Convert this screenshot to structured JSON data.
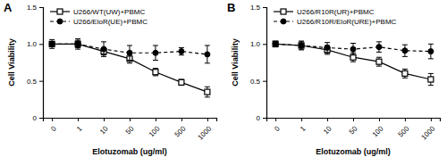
{
  "chart_data": [
    {
      "type": "line",
      "title": "A",
      "x_label": "Elotuzomab (ug/ml)",
      "y_label": "Cell Viability",
      "categories": [
        "0",
        "1",
        "10",
        "50",
        "100",
        "500",
        "1000"
      ],
      "ylim": [
        0,
        1.5
      ],
      "yticks": [
        0,
        0.5,
        {
          "value": 1,
          "label": "1.0"
        },
        1.5
      ],
      "legend": "top-left",
      "series": [
        {
          "name": "U266/WT(UW)+PBMC",
          "color": "#000000",
          "marker": "square",
          "line_style": "solid",
          "values": [
            1.0,
            1.0,
            0.9,
            0.8,
            0.62,
            0.48,
            0.35
          ],
          "errors": [
            0.03,
            0.05,
            0.05,
            0.06,
            0.05,
            0.04,
            0.07
          ]
        },
        {
          "name": "U266/EloR(UE)+PBMC",
          "color": "#000000",
          "marker": "circle",
          "line_style": "dashed",
          "values": [
            1.0,
            1.0,
            0.93,
            0.88,
            0.88,
            0.9,
            0.86
          ],
          "errors": [
            0.06,
            0.07,
            0.1,
            0.1,
            0.1,
            0.05,
            0.12
          ]
        }
      ]
    },
    {
      "type": "line",
      "title": "B",
      "x_label": "Elotuzomab (ug/ml)",
      "y_label": "Cell Viability",
      "categories": [
        "0",
        "1",
        "10",
        "50",
        "100",
        "500",
        "1000"
      ],
      "ylim": [
        0,
        1.5
      ],
      "yticks": [
        0,
        0.5,
        {
          "value": 1,
          "label": "1.0"
        },
        1.5
      ],
      "legend": "top-left",
      "series": [
        {
          "name": "U266/R10R(UR)+PBMC",
          "color": "#000000",
          "marker": "square",
          "line_style": "solid",
          "values": [
            1.0,
            0.98,
            0.92,
            0.82,
            0.76,
            0.6,
            0.52
          ],
          "errors": [
            0.03,
            0.05,
            0.06,
            0.06,
            0.06,
            0.06,
            0.08
          ]
        },
        {
          "name": "U266/R10R/EloR(URE)+PBMC",
          "color": "#000000",
          "marker": "circle",
          "line_style": "dashed",
          "values": [
            1.0,
            0.98,
            0.95,
            0.93,
            0.96,
            0.91,
            0.9
          ],
          "errors": [
            0.04,
            0.06,
            0.07,
            0.08,
            0.07,
            0.08,
            0.1
          ]
        }
      ]
    }
  ]
}
